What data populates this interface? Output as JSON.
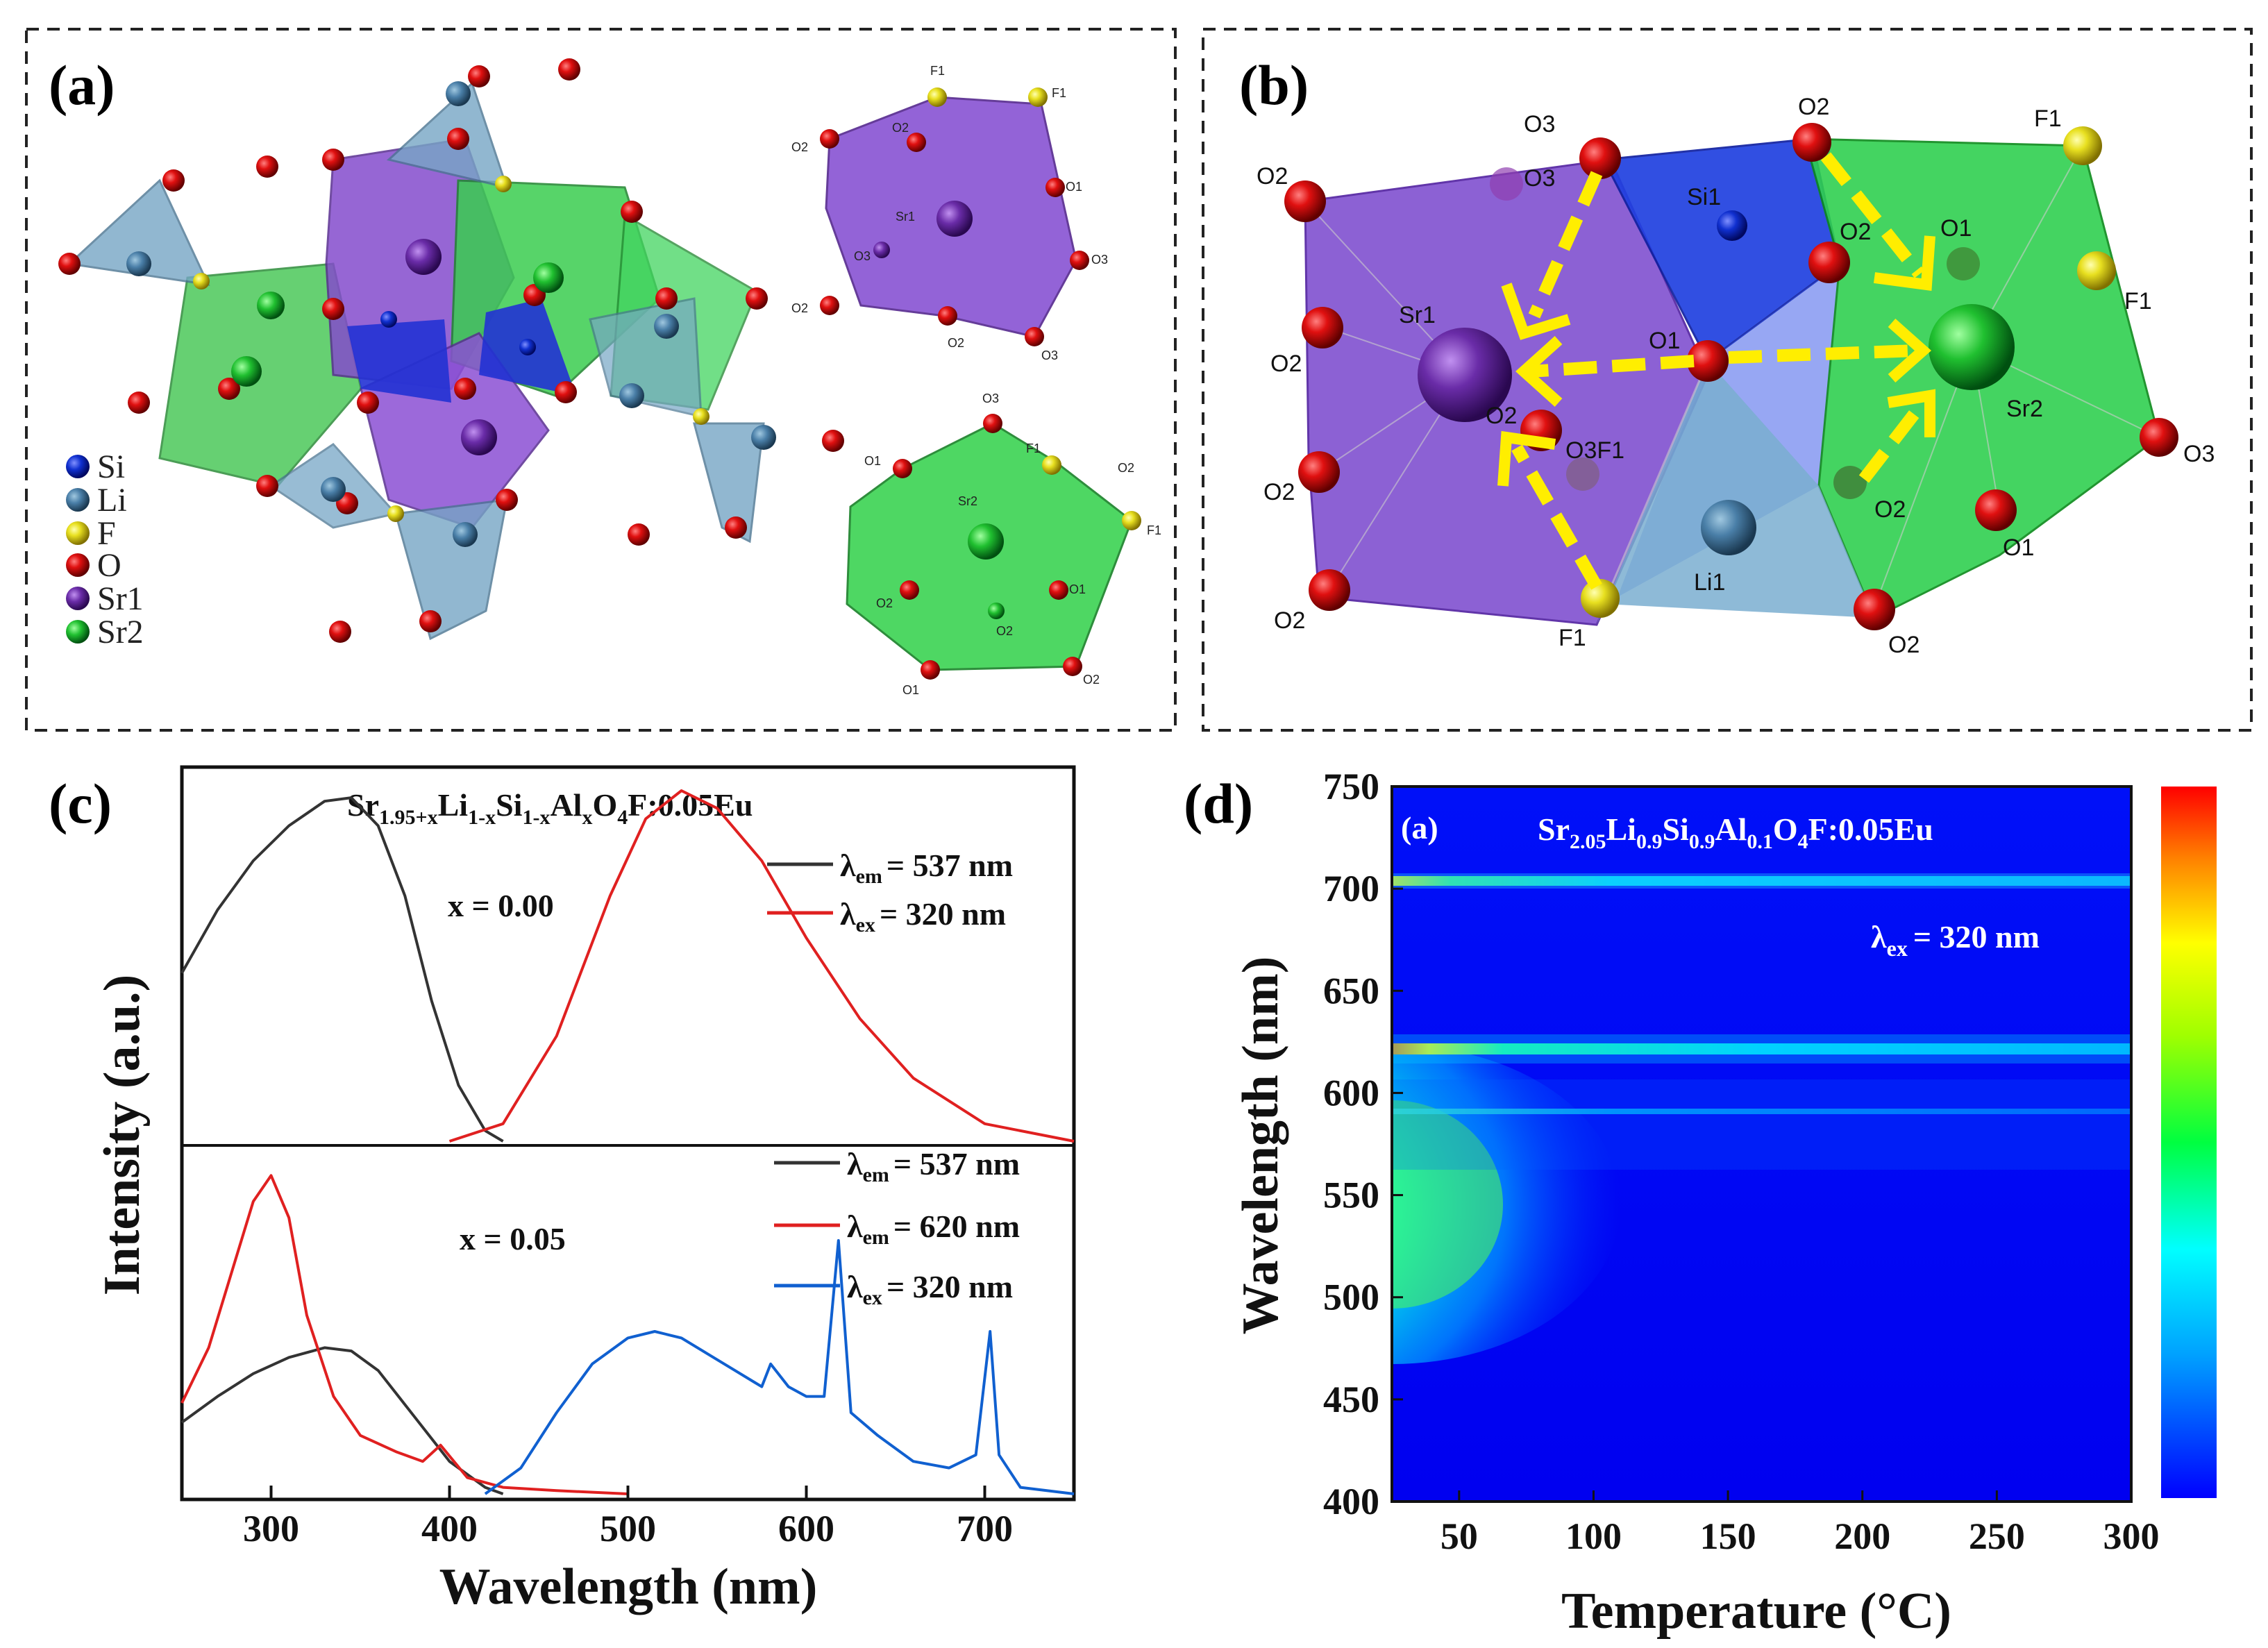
{
  "panels": {
    "a": {
      "label": "(a)"
    },
    "b": {
      "label": "(b)"
    },
    "c": {
      "label": "(c)"
    },
    "d": {
      "label": "(d)"
    }
  },
  "legend_a": [
    {
      "label": "Si",
      "color": "#1030d0"
    },
    {
      "label": "Li",
      "color": "#4a7fa8"
    },
    {
      "label": "F",
      "color": "#e8e020"
    },
    {
      "label": "O",
      "color": "#d01010"
    },
    {
      "label": "Sr1",
      "color": "#6a2ca8"
    },
    {
      "label": "Sr2",
      "color": "#20c030"
    }
  ],
  "struct_a_labels": {
    "sr1_poly": [
      "F1",
      "F1",
      "O2",
      "O2",
      "O1",
      "Sr1",
      "O3",
      "O3",
      "O2",
      "O2",
      "O3"
    ],
    "sr2_poly": [
      "O3",
      "O1",
      "F1",
      "Sr2",
      "F1",
      "O1",
      "O2",
      "O2",
      "O1",
      "O2",
      "O2"
    ]
  },
  "struct_b_labels": [
    "O3",
    "O2",
    "F1",
    "O2",
    "O3",
    "Si1",
    "O2",
    "O1",
    "F1",
    "Sr1",
    "O1",
    "O2",
    "Sr2",
    "O3F1",
    "O2",
    "O3",
    "O2",
    "O2",
    "Li1",
    "O1",
    "O2",
    "F1",
    "O2"
  ],
  "chart_c": {
    "formula_main": "Sr",
    "formula_sub1": "1.95+x",
    "formula_li": "Li",
    "formula_sub2": "1-x",
    "formula_si": "Si",
    "formula_sub3": "1-x",
    "formula_al": "Al",
    "formula_sub4": "x",
    "formula_tail": "O",
    "formula_sub5": "4",
    "formula_end": "F:0.05Eu",
    "ylabel": "Intensity (a.u.)",
    "xlabel": "Wavelength (nm)",
    "x_ticks": [
      "300",
      "400",
      "500",
      "600",
      "700"
    ],
    "top_annot": "x = 0.00",
    "bottom_annot": "x = 0.05",
    "top_legend": [
      {
        "sym": "λ",
        "sub": "em",
        "text": "= 537 nm",
        "color": "#333333"
      },
      {
        "sym": "λ",
        "sub": "ex",
        "text": "= 320 nm",
        "color": "#e02020"
      }
    ],
    "bottom_legend": [
      {
        "sym": "λ",
        "sub": "em",
        "text": "= 537 nm",
        "color": "#333333"
      },
      {
        "sym": "λ",
        "sub": "em",
        "text": "= 620 nm",
        "color": "#e02020"
      },
      {
        "sym": "λ",
        "sub": "ex",
        "text": "= 320 nm",
        "color": "#1060d0"
      }
    ]
  },
  "chart_d": {
    "tag": "(a)",
    "formula": "Sr",
    "f_sub1": "2.05",
    "f_li": "Li",
    "f_sub2": "0.9",
    "f_si": "Si",
    "f_sub3": "0.9",
    "f_al": "Al",
    "f_sub4": "0.1",
    "f_o": "O",
    "f_sub5": "4",
    "f_end": "F:0.05Eu",
    "lambda": "λ",
    "lambda_sub": "ex",
    "lambda_text": "= 320 nm",
    "ylabel": "Wavelength (nm)",
    "xlabel": "Temperature (°C)",
    "y_ticks": [
      "400",
      "450",
      "500",
      "550",
      "600",
      "650",
      "700",
      "750"
    ],
    "x_ticks": [
      "50",
      "100",
      "150",
      "200",
      "250",
      "300"
    ]
  },
  "chart_data": [
    {
      "type": "line",
      "title": "Sr1.95+xLi1-xSi1-xAlxO4F:0.05Eu",
      "xlabel": "Wavelength (nm)",
      "ylabel": "Intensity (a.u.)",
      "xlim": [
        250,
        750
      ],
      "panels": [
        {
          "annotation": "x = 0.00",
          "series": [
            {
              "name": "λem = 537 nm",
              "color": "#333333",
              "x": [
                250,
                270,
                290,
                310,
                330,
                345,
                360,
                375,
                390,
                405,
                420,
                430
              ],
              "y": [
                0.48,
                0.66,
                0.8,
                0.9,
                0.97,
                0.98,
                0.9,
                0.7,
                0.4,
                0.16,
                0.03,
                0.0
              ]
            },
            {
              "name": "λex = 320 nm",
              "color": "#e02020",
              "x": [
                400,
                430,
                460,
                490,
                510,
                530,
                550,
                575,
                600,
                630,
                660,
                700,
                750
              ],
              "y": [
                0.0,
                0.05,
                0.3,
                0.7,
                0.92,
                1.0,
                0.95,
                0.8,
                0.58,
                0.35,
                0.18,
                0.05,
                0.0
              ]
            }
          ]
        },
        {
          "annotation": "x = 0.05",
          "series": [
            {
              "name": "λem = 537 nm",
              "color": "#333333",
              "x": [
                250,
                270,
                290,
                310,
                330,
                345,
                360,
                380,
                400,
                420,
                430
              ],
              "y": [
                0.22,
                0.3,
                0.37,
                0.42,
                0.45,
                0.44,
                0.38,
                0.24,
                0.1,
                0.02,
                0.0
              ]
            },
            {
              "name": "λem = 620 nm",
              "color": "#e02020",
              "x": [
                250,
                265,
                280,
                290,
                300,
                310,
                320,
                335,
                350,
                370,
                385,
                395,
                410,
                430,
                460,
                500
              ],
              "y": [
                0.28,
                0.45,
                0.72,
                0.9,
                0.98,
                0.85,
                0.55,
                0.3,
                0.18,
                0.13,
                0.1,
                0.15,
                0.05,
                0.02,
                0.01,
                0.0
              ]
            },
            {
              "name": "λex = 320 nm",
              "color": "#1060d0",
              "x": [
                420,
                440,
                460,
                480,
                500,
                515,
                530,
                545,
                560,
                575,
                580,
                590,
                600,
                610,
                618,
                625,
                640,
                660,
                680,
                695,
                703,
                708,
                720,
                750
              ],
              "y": [
                0.0,
                0.08,
                0.25,
                0.4,
                0.48,
                0.5,
                0.48,
                0.43,
                0.38,
                0.33,
                0.4,
                0.33,
                0.3,
                0.3,
                0.78,
                0.25,
                0.18,
                0.1,
                0.08,
                0.12,
                0.5,
                0.12,
                0.02,
                0.0
              ]
            }
          ]
        }
      ]
    },
    {
      "type": "heatmap",
      "title": "Sr2.05Li0.9Si0.9Al0.1O4F:0.05Eu",
      "xlabel": "Temperature (°C)",
      "ylabel": "Wavelength (nm)",
      "xlim": [
        25,
        300
      ],
      "ylim": [
        400,
        750
      ],
      "annotation": "λex = 320 nm",
      "colormap": [
        "#0000ff",
        "#00a0ff",
        "#00ffff",
        "#00ff60",
        "#a0ff00",
        "#ffff00",
        "#ff8000",
        "#ff0000"
      ],
      "features": [
        {
          "wavelength": 703,
          "intensity_at_25C": 0.75
        },
        {
          "wavelength": 620,
          "intensity_at_25C": 0.9
        },
        {
          "wavelength": 590,
          "intensity_at_25C": 0.35
        },
        {
          "wavelength": 530,
          "intensity_at_25C": 0.55,
          "broad": true
        }
      ]
    }
  ]
}
